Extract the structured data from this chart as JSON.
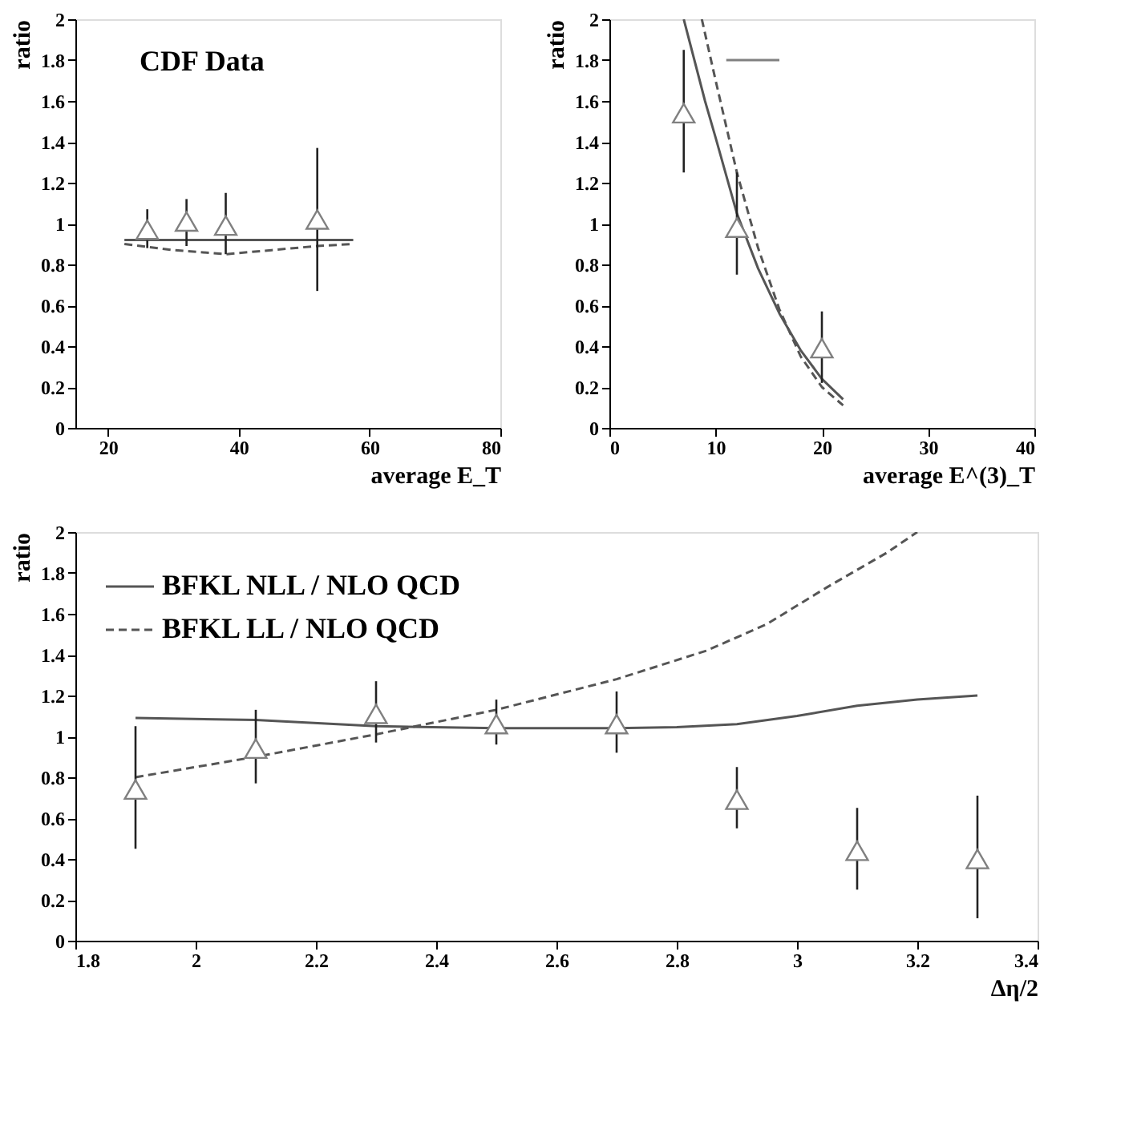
{
  "chart_data": [
    {
      "type": "scatter",
      "xlabel": "average E_T",
      "ylabel": "ratio",
      "xlim": [
        15,
        80
      ],
      "xticks": [
        20,
        40,
        60,
        80
      ],
      "ylim": [
        0,
        2
      ],
      "yticks": [
        0,
        0.2,
        0.4,
        0.6,
        0.8,
        1,
        1.2,
        1.4,
        1.6,
        1.8,
        2
      ],
      "grid": false,
      "legend": "top left",
      "series": [
        {
          "type": "line",
          "color": "#555555",
          "line_style": "solid",
          "x": [
            22.5,
            57.5
          ],
          "values": [
            0.92,
            0.92
          ]
        },
        {
          "type": "line",
          "color": "#555555",
          "line_style": "dashed",
          "x": [
            22.5,
            30,
            38,
            45,
            52,
            57.5
          ],
          "values": [
            0.9,
            0.87,
            0.85,
            0.87,
            0.89,
            0.9
          ]
        },
        {
          "name": "CDF Data",
          "color": "#808080",
          "marker": "triangle",
          "x": [
            26,
            32,
            38,
            52
          ],
          "values": [
            0.97,
            1.01,
            0.99,
            1.02
          ],
          "errors": [
            [
              0.88,
              1.07
            ],
            [
              0.89,
              1.12
            ],
            [
              0.85,
              1.15
            ],
            [
              0.67,
              1.37
            ]
          ]
        }
      ]
    },
    {
      "type": "scatter",
      "xlabel": "average E^(3)_T",
      "ylabel": "ratio",
      "xlim": [
        0,
        40
      ],
      "xticks": [
        0,
        10,
        20,
        30,
        40
      ],
      "ylim": [
        0,
        2
      ],
      "yticks": [
        0,
        0.2,
        0.4,
        0.6,
        0.8,
        1,
        1.2,
        1.4,
        1.6,
        1.8,
        2
      ],
      "grid": false,
      "legend": false,
      "series": [
        {
          "type": "line",
          "color": "#555555",
          "line_style": "solid",
          "x": [
            7,
            8,
            9,
            10,
            12,
            14,
            16,
            18,
            20,
            22
          ],
          "values": [
            2.0,
            1.8,
            1.6,
            1.42,
            1.05,
            0.78,
            0.56,
            0.38,
            0.24,
            0.14
          ]
        },
        {
          "type": "line",
          "color": "#555555",
          "line_style": "dashed",
          "x": [
            8.7,
            10,
            12,
            14,
            16,
            18,
            20,
            22
          ],
          "values": [
            2.0,
            1.7,
            1.25,
            0.88,
            0.58,
            0.35,
            0.2,
            0.11
          ]
        },
        {
          "type": "line",
          "color": "#808080",
          "line_style": "solid",
          "x": [
            11,
            16
          ],
          "values": [
            1.8,
            1.8
          ]
        },
        {
          "color": "#808080",
          "marker": "triangle",
          "x": [
            7,
            12,
            20
          ],
          "values": [
            1.54,
            0.98,
            0.39
          ],
          "errors": [
            [
              1.25,
              1.85
            ],
            [
              0.75,
              1.25
            ],
            [
              0.22,
              0.57
            ]
          ]
        }
      ]
    },
    {
      "type": "scatter",
      "xlabel": "Δη/2",
      "ylabel": "ratio",
      "xlim": [
        1.8,
        3.4
      ],
      "xticks": [
        1.8,
        2,
        2.2,
        2.4,
        2.6,
        2.8,
        3,
        3.2,
        3.4
      ],
      "ylim": [
        0,
        2
      ],
      "yticks": [
        0,
        0.2,
        0.4,
        0.6,
        0.8,
        1,
        1.2,
        1.4,
        1.6,
        1.8,
        2
      ],
      "grid": false,
      "legend": "top left",
      "series": [
        {
          "type": "line",
          "name": "BFKL NLL / NLO QCD",
          "color": "#555555",
          "line_style": "solid",
          "x": [
            1.9,
            2.1,
            2.3,
            2.5,
            2.7,
            2.8,
            2.9,
            3.0,
            3.1,
            3.2,
            3.3
          ],
          "values": [
            1.09,
            1.08,
            1.05,
            1.04,
            1.04,
            1.045,
            1.06,
            1.1,
            1.15,
            1.18,
            1.2
          ]
        },
        {
          "type": "line",
          "name": "BFKL LL / NLO QCD",
          "color": "#555555",
          "line_style": "dashed",
          "x": [
            1.9,
            2.1,
            2.3,
            2.5,
            2.7,
            2.85,
            2.95,
            3.05,
            3.15,
            3.2
          ],
          "values": [
            0.8,
            0.9,
            1.01,
            1.13,
            1.28,
            1.42,
            1.55,
            1.73,
            1.9,
            2.0
          ]
        },
        {
          "color": "#808080",
          "marker": "triangle",
          "x": [
            1.9,
            2.1,
            2.3,
            2.5,
            2.7,
            2.9,
            3.1,
            3.3
          ],
          "values": [
            0.74,
            0.94,
            1.11,
            1.06,
            1.06,
            0.69,
            0.44,
            0.4
          ],
          "errors": [
            [
              0.45,
              1.05
            ],
            [
              0.77,
              1.13
            ],
            [
              0.97,
              1.27
            ],
            [
              0.96,
              1.18
            ],
            [
              0.92,
              1.22
            ],
            [
              0.55,
              0.85
            ],
            [
              0.25,
              0.65
            ],
            [
              0.11,
              0.71
            ]
          ]
        }
      ]
    }
  ]
}
